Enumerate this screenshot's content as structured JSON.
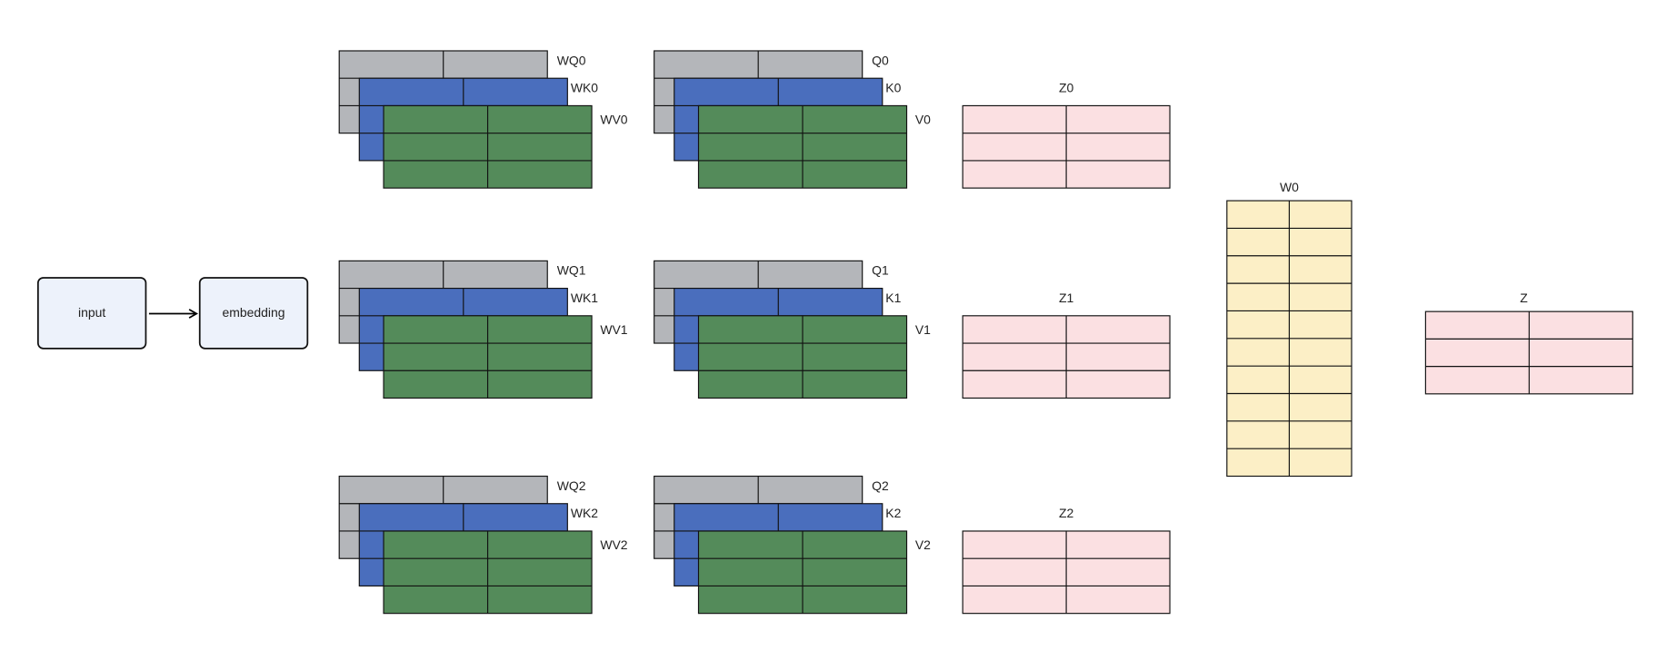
{
  "nodes": {
    "input": "input",
    "embedding": "embedding"
  },
  "heads": [
    {
      "weights": [
        "WQ0",
        "WK0",
        "WV0"
      ],
      "qkv": [
        "Q0",
        "K0",
        "V0"
      ],
      "z": "Z0"
    },
    {
      "weights": [
        "WQ1",
        "WK1",
        "WV1"
      ],
      "qkv": [
        "Q1",
        "K1",
        "V1"
      ],
      "z": "Z1"
    },
    {
      "weights": [
        "WQ2",
        "WK2",
        "WV2"
      ],
      "qkv": [
        "Q2",
        "K2",
        "V2"
      ],
      "z": "Z2"
    }
  ],
  "w0": "W0",
  "z": "Z"
}
